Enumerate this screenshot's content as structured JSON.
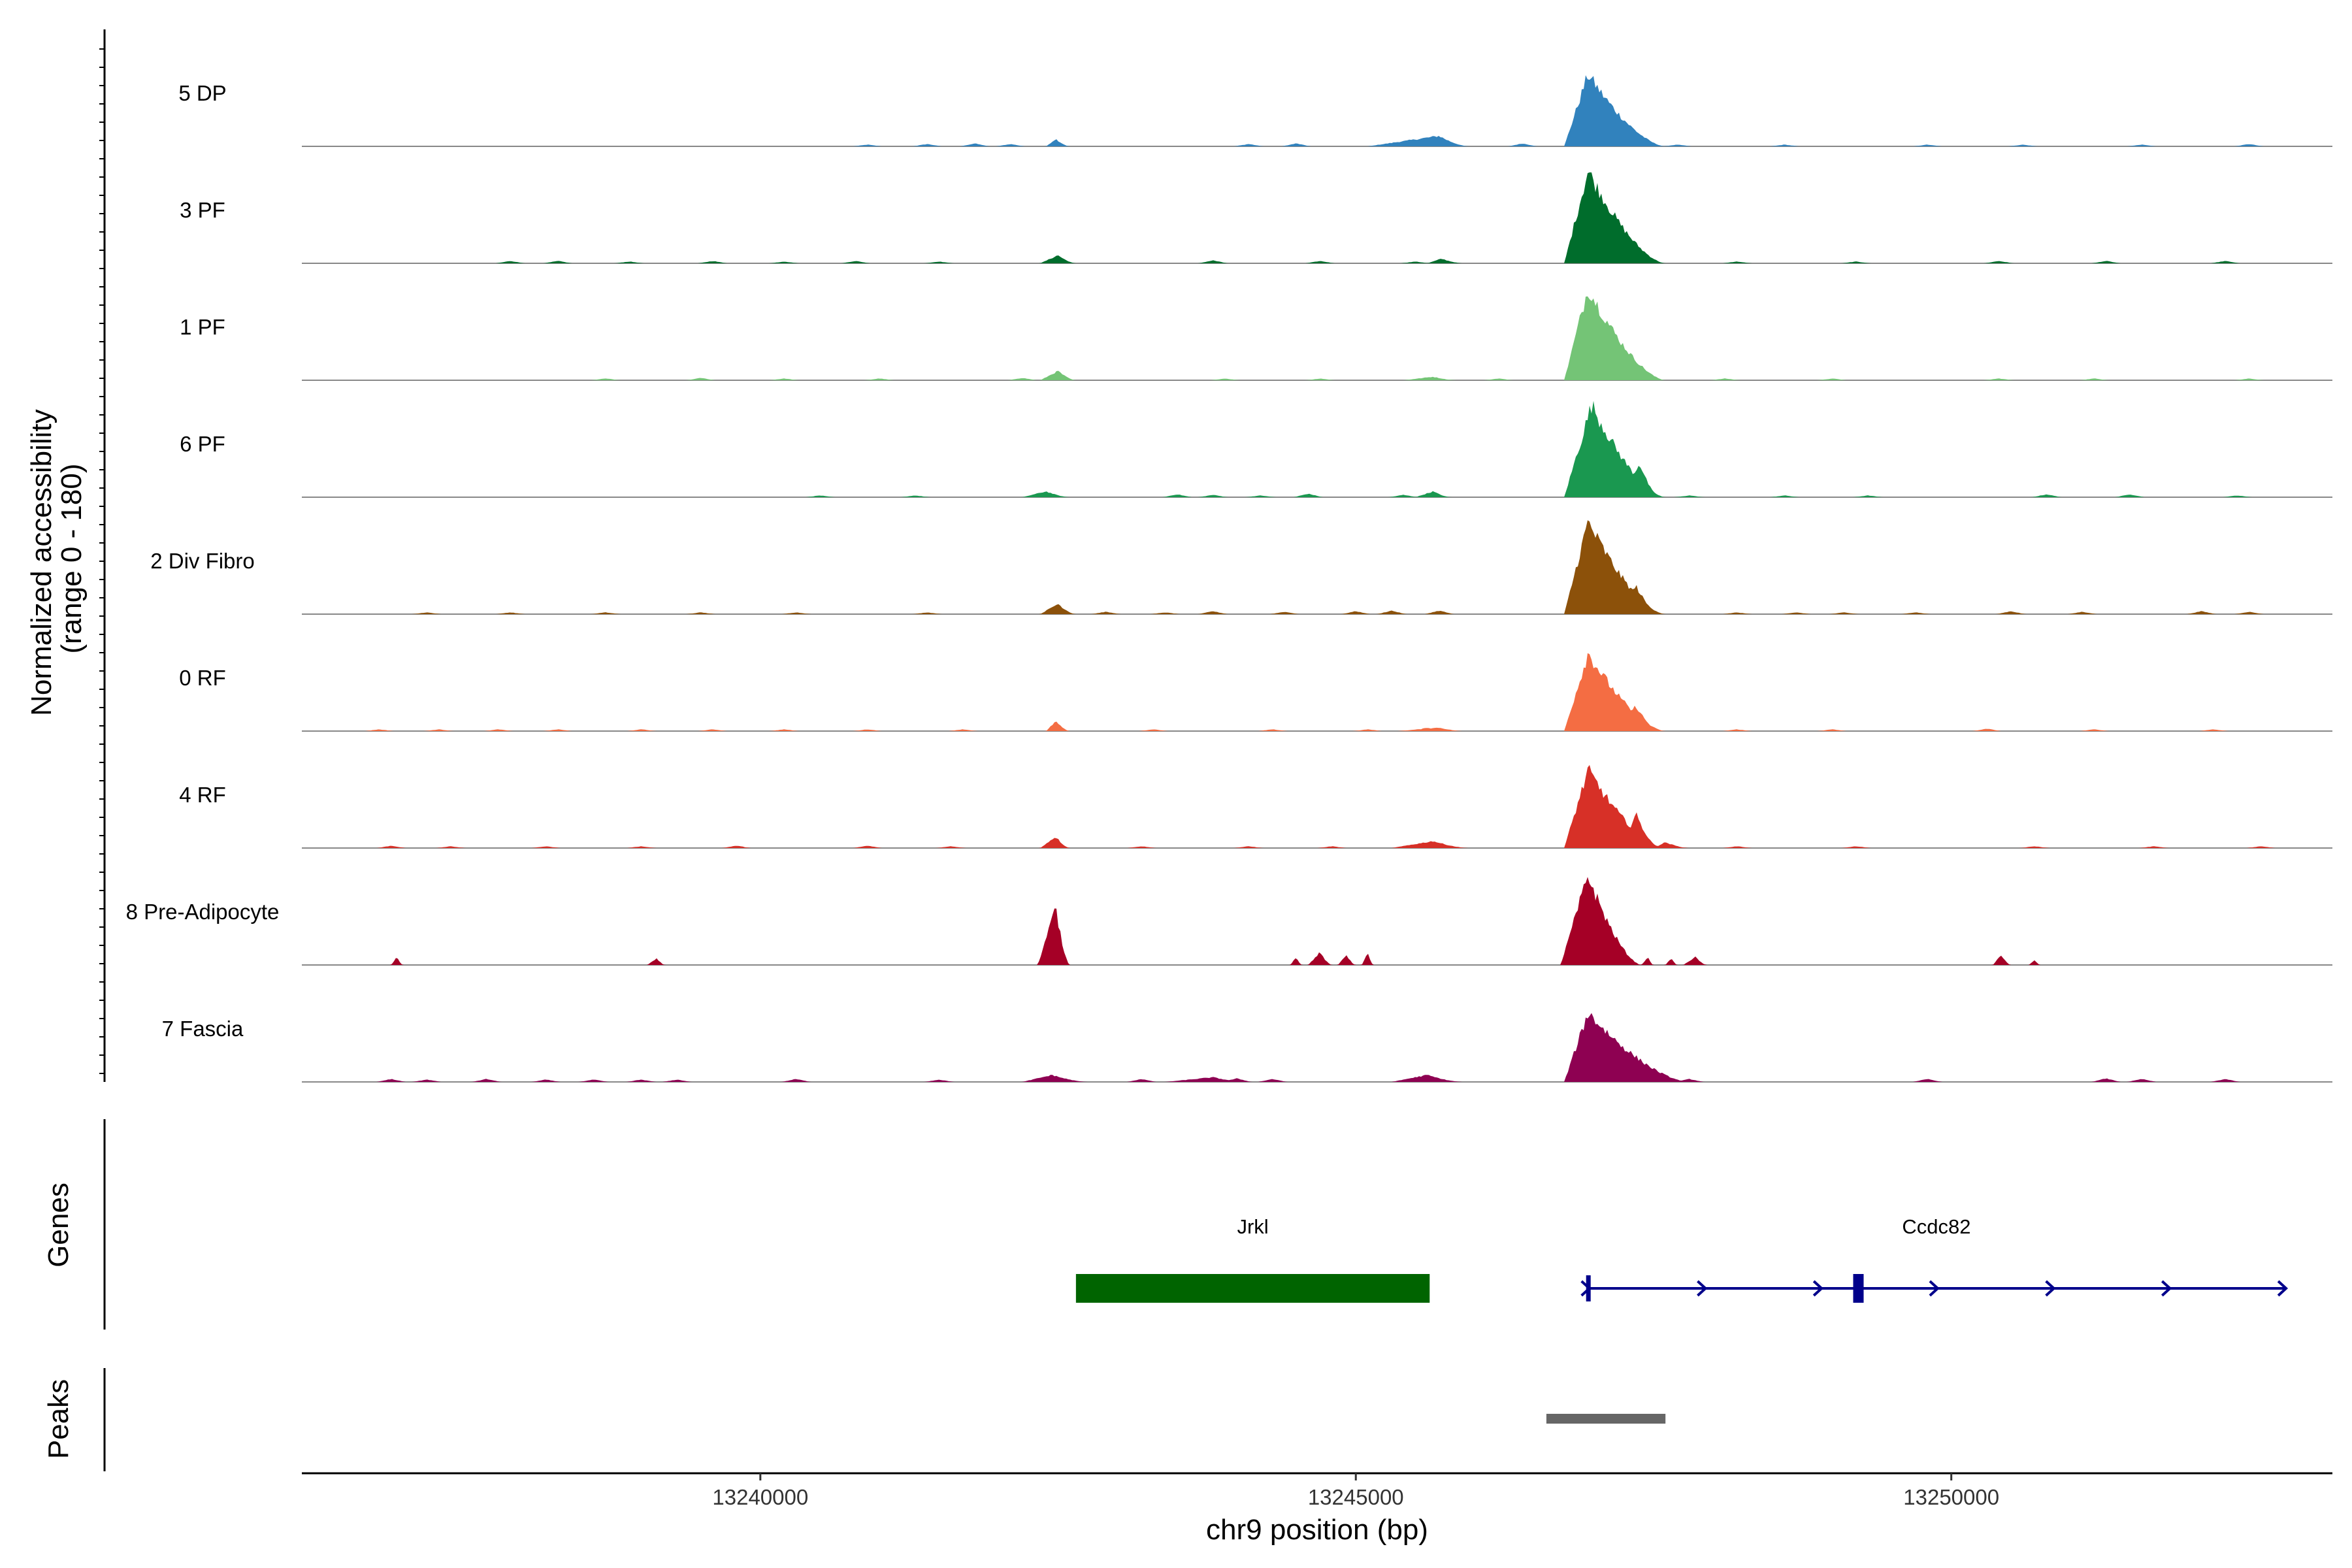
{
  "chart_data": {
    "type": "area",
    "title": "",
    "ylabel": "Normalized accessibility\n(range 0 - 180)",
    "ylabel_lines": [
      "Normalized accessibility",
      "(range 0 - 180)"
    ],
    "ylim": [
      0,
      180
    ],
    "xlabel": "chr9 position (bp)",
    "xlim": [
      13236150,
      13253200
    ],
    "x_ticks": [
      13240000,
      13245000,
      13250000
    ],
    "x_tick_labels": [
      "13240000",
      "13245000",
      "13250000"
    ],
    "grid": false,
    "series": [
      {
        "name": "5 DP",
        "color": "#3182bd",
        "background": [
          [
            13240900,
            3
          ],
          [
            13241400,
            4
          ],
          [
            13241800,
            5
          ],
          [
            13242100,
            4
          ],
          [
            13244100,
            4
          ],
          [
            13244500,
            5
          ],
          [
            13246400,
            5
          ],
          [
            13247700,
            3
          ],
          [
            13248600,
            3
          ],
          [
            13249800,
            3
          ],
          [
            13250600,
            3
          ],
          [
            13251600,
            3
          ],
          [
            13252500,
            4
          ]
        ],
        "peaks": [
          [
            13242400,
            13242600,
            13242480,
            13
          ],
          [
            13245100,
            13245950,
            13245700,
            18
          ],
          [
            13246750,
            13247600,
            13246950,
            125
          ],
          [
            13247200,
            13247500,
            13247300,
            33
          ]
        ]
      },
      {
        "name": "3 PF",
        "color": "#006d2c",
        "background": [
          [
            13237900,
            4
          ],
          [
            13238300,
            4
          ],
          [
            13238900,
            3
          ],
          [
            13239600,
            4
          ],
          [
            13240200,
            3
          ],
          [
            13240800,
            4
          ],
          [
            13241500,
            3
          ],
          [
            13243800,
            5
          ],
          [
            13244700,
            4
          ],
          [
            13245500,
            3
          ],
          [
            13248200,
            3
          ],
          [
            13249200,
            3
          ],
          [
            13250400,
            4
          ],
          [
            13251300,
            4
          ],
          [
            13252300,
            4
          ]
        ],
        "peaks": [
          [
            13242350,
            13242650,
            13242500,
            14
          ],
          [
            13245600,
            13245900,
            13245720,
            8
          ],
          [
            13246750,
            13247600,
            13246950,
            160
          ],
          [
            13247150,
            13247500,
            13247250,
            45
          ]
        ]
      },
      {
        "name": "1 PF",
        "color": "#74c476",
        "background": [
          [
            13238700,
            3
          ],
          [
            13239500,
            4
          ],
          [
            13240200,
            3
          ],
          [
            13241000,
            3
          ],
          [
            13242200,
            4
          ],
          [
            13243900,
            3
          ],
          [
            13244700,
            3
          ],
          [
            13246200,
            3
          ],
          [
            13248100,
            3
          ],
          [
            13249000,
            3
          ],
          [
            13250400,
            3
          ],
          [
            13251200,
            3
          ],
          [
            13252500,
            3
          ]
        ],
        "peaks": [
          [
            13242350,
            13242650,
            13242500,
            16
          ],
          [
            13245400,
            13245850,
            13245650,
            6
          ],
          [
            13246750,
            13247600,
            13246950,
            160
          ],
          [
            13247250,
            13247500,
            13247330,
            25
          ]
        ]
      },
      {
        "name": "6 PF",
        "color": "#1a9850",
        "background": [
          [
            13240500,
            3
          ],
          [
            13241300,
            3
          ],
          [
            13243500,
            5
          ],
          [
            13243800,
            4
          ],
          [
            13244200,
            3
          ],
          [
            13244600,
            6
          ],
          [
            13245400,
            4
          ],
          [
            13247800,
            3
          ],
          [
            13248600,
            3
          ],
          [
            13249300,
            3
          ],
          [
            13250800,
            5
          ],
          [
            13251500,
            5
          ],
          [
            13252400,
            3
          ]
        ],
        "peaks": [
          [
            13242200,
            13242600,
            13242400,
            10
          ],
          [
            13245500,
            13245800,
            13245650,
            10
          ],
          [
            13246750,
            13247600,
            13246980,
            160
          ],
          [
            13247250,
            13247550,
            13247380,
            60
          ]
        ]
      },
      {
        "name": "2 Div Fibro",
        "color": "#8c510a",
        "background": [
          [
            13237200,
            3
          ],
          [
            13237900,
            3
          ],
          [
            13238700,
            3
          ],
          [
            13239500,
            3
          ],
          [
            13240300,
            3
          ],
          [
            13241400,
            3
          ],
          [
            13242900,
            4
          ],
          [
            13243400,
            3
          ],
          [
            13243800,
            5
          ],
          [
            13244400,
            4
          ],
          [
            13245000,
            5
          ],
          [
            13245300,
            6
          ],
          [
            13245700,
            6
          ],
          [
            13248200,
            3
          ],
          [
            13248700,
            3
          ],
          [
            13249100,
            3
          ],
          [
            13249700,
            3
          ],
          [
            13250500,
            5
          ],
          [
            13251100,
            4
          ],
          [
            13252100,
            5
          ],
          [
            13252500,
            4
          ]
        ],
        "peaks": [
          [
            13242350,
            13242650,
            13242500,
            18
          ],
          [
            13246750,
            13247600,
            13246950,
            160
          ],
          [
            13247250,
            13247550,
            13247350,
            50
          ]
        ]
      },
      {
        "name": "0 RF",
        "color": "#f46d43",
        "background": [
          [
            13236800,
            3
          ],
          [
            13237300,
            3
          ],
          [
            13237800,
            3
          ],
          [
            13238300,
            3
          ],
          [
            13239000,
            3
          ],
          [
            13239600,
            3
          ],
          [
            13240200,
            3
          ],
          [
            13240900,
            3
          ],
          [
            13241700,
            3
          ],
          [
            13243300,
            3
          ],
          [
            13244300,
            3
          ],
          [
            13245100,
            3
          ],
          [
            13245600,
            6
          ],
          [
            13248200,
            3
          ],
          [
            13249000,
            3
          ],
          [
            13250300,
            4
          ],
          [
            13251200,
            3
          ],
          [
            13252200,
            3
          ]
        ],
        "peaks": [
          [
            13242400,
            13242600,
            13242480,
            17
          ],
          [
            13245350,
            13245900,
            13245700,
            6
          ],
          [
            13246750,
            13247600,
            13246950,
            135
          ],
          [
            13247250,
            13247550,
            13247350,
            45
          ]
        ]
      },
      {
        "name": "4 RF",
        "color": "#d73027",
        "background": [
          [
            13236900,
            4
          ],
          [
            13237400,
            3
          ],
          [
            13238200,
            3
          ],
          [
            13239000,
            3
          ],
          [
            13239800,
            4
          ],
          [
            13240900,
            4
          ],
          [
            13241600,
            3
          ],
          [
            13243200,
            3
          ],
          [
            13244100,
            3
          ],
          [
            13244800,
            3
          ],
          [
            13248200,
            3
          ],
          [
            13249200,
            3
          ],
          [
            13250700,
            3
          ],
          [
            13251700,
            3
          ],
          [
            13252600,
            3
          ]
        ],
        "peaks": [
          [
            13242350,
            13242600,
            13242480,
            20
          ],
          [
            13245300,
            13245950,
            13245650,
            12
          ],
          [
            13246750,
            13247600,
            13246950,
            135
          ],
          [
            13247250,
            13247550,
            13247350,
            60
          ],
          [
            13247500,
            13247800,
            13247600,
            10
          ]
        ]
      },
      {
        "name": "8 Pre-Adipocyte",
        "color": "#a50026",
        "background": [],
        "peaks": [
          [
            13236900,
            13237000,
            13236950,
            14
          ],
          [
            13239050,
            13239200,
            13239130,
            12
          ],
          [
            13242330,
            13242600,
            13242480,
            100
          ],
          [
            13244450,
            13244550,
            13244500,
            14
          ],
          [
            13244600,
            13244800,
            13244700,
            22
          ],
          [
            13244850,
            13245000,
            13244920,
            18
          ],
          [
            13245050,
            13245150,
            13245100,
            20
          ],
          [
            13246720,
            13247400,
            13246950,
            155
          ],
          [
            13247400,
            13247500,
            13247450,
            14
          ],
          [
            13247600,
            13247700,
            13247650,
            12
          ],
          [
            13247750,
            13247950,
            13247850,
            14
          ],
          [
            13250350,
            13250500,
            13250420,
            18
          ],
          [
            13250650,
            13250750,
            13250700,
            8
          ]
        ]
      },
      {
        "name": "7 Fascia",
        "color": "#8e0152",
        "background": [
          [
            13236900,
            5
          ],
          [
            13237200,
            4
          ],
          [
            13237700,
            5
          ],
          [
            13238200,
            4
          ],
          [
            13238600,
            4
          ],
          [
            13239000,
            4
          ],
          [
            13239300,
            4
          ],
          [
            13240300,
            5
          ],
          [
            13241500,
            4
          ],
          [
            13243200,
            5
          ],
          [
            13244000,
            6
          ],
          [
            13244300,
            5
          ],
          [
            13247800,
            5
          ],
          [
            13249800,
            5
          ],
          [
            13251300,
            6
          ],
          [
            13251600,
            5
          ],
          [
            13252300,
            5
          ]
        ],
        "peaks": [
          [
            13242200,
            13242750,
            13242450,
            12
          ],
          [
            13243400,
            13244100,
            13243800,
            8
          ],
          [
            13245300,
            13245900,
            13245600,
            12
          ],
          [
            13246750,
            13247800,
            13246950,
            120
          ],
          [
            13247150,
            13247450,
            13247250,
            35
          ]
        ]
      }
    ],
    "genes": [
      {
        "name": "Jrkl",
        "start": 13242650,
        "end": 13245620,
        "color": "#006400",
        "type": "block"
      },
      {
        "name": "Ccdc82",
        "start": 13246950,
        "end": 13252800,
        "color": "#00008b",
        "type": "transcript",
        "strand": "+",
        "exon": 13249220
      }
    ],
    "peaks_track": [
      {
        "start": 13246600,
        "end": 13247600,
        "color": "#666666"
      }
    ],
    "track_labels": {
      "genes": "Genes",
      "peaks": "Peaks"
    }
  }
}
